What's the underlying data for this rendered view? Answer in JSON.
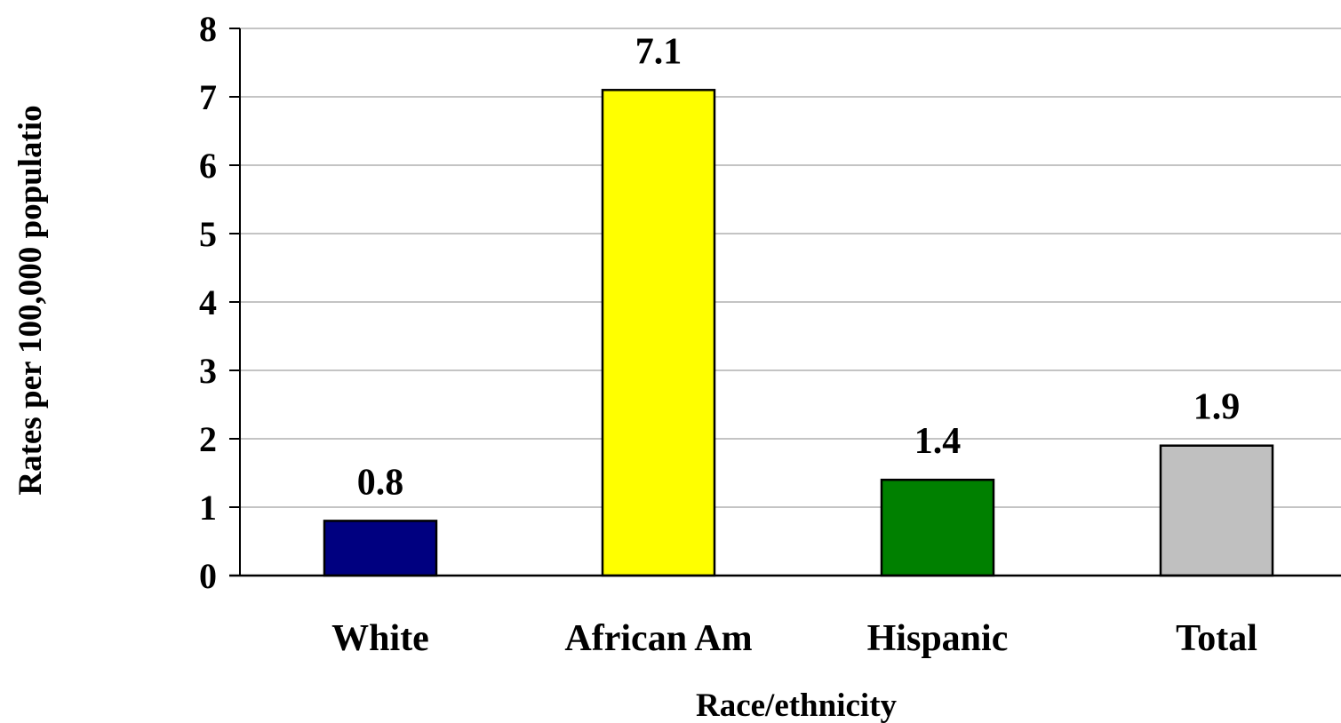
{
  "chart_data": {
    "type": "bar",
    "categories": [
      "White",
      "African Am",
      "Hispanic",
      "Total"
    ],
    "values": [
      0.8,
      7.1,
      1.4,
      1.9
    ],
    "value_labels": [
      "0.8",
      "7.1",
      "1.4",
      "1.9"
    ],
    "bar_colors": [
      "#000080",
      "#FFFF00",
      "#008000",
      "#C0C0C0"
    ],
    "title": "",
    "xlabel": "Race/ethnicity",
    "ylabel": "Rates per 100,000 populatio",
    "ylim": [
      0,
      8
    ],
    "yticks": [
      "0",
      "1",
      "2",
      "3",
      "4",
      "5",
      "6",
      "7",
      "8"
    ],
    "grid": true,
    "legend": "none"
  }
}
